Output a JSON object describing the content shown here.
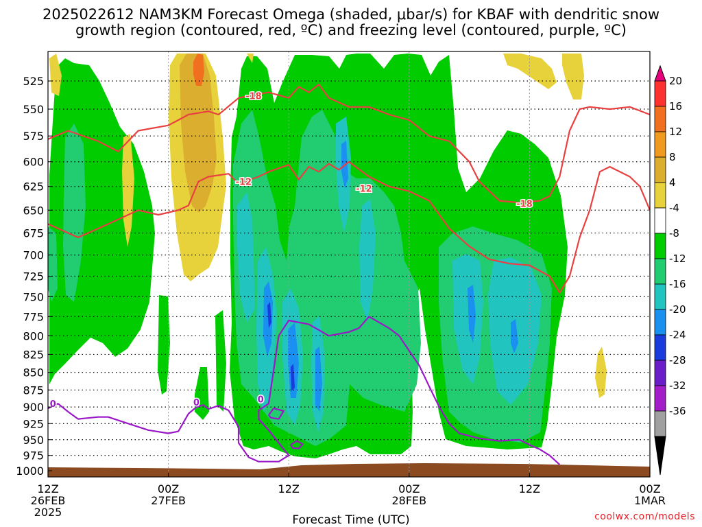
{
  "title": {
    "line1": "2025022612 NAM3KM Forecast Omega (shaded, μbar/s) for KBAF with dendritic snow",
    "line2": "growth region (contoured, red, ºC) and freezing level (contoured, purple, ºC)"
  },
  "credit": "coolwx.com/models",
  "chart_data": {
    "type": "heatmap",
    "title": "2025022612 NAM3KM Forecast Omega (shaded, μbar/s) for KBAF with dendritic snow growth region (contoured, red, ºC) and freezing level (contoured, purple, ºC)",
    "xlabel": "Forecast Time (UTC)",
    "ylabel": "",
    "x_range_hours": [
      0,
      60
    ],
    "x_ticks": [
      {
        "hour": 0,
        "label": [
          "12Z",
          "26FEB",
          "2025"
        ]
      },
      {
        "hour": 12,
        "label": [
          "00Z",
          "27FEB"
        ]
      },
      {
        "hour": 24,
        "label": [
          "12Z"
        ]
      },
      {
        "hour": 36,
        "label": [
          "00Z",
          "28FEB"
        ]
      },
      {
        "hour": 48,
        "label": [
          "12Z"
        ]
      },
      {
        "hour": 60,
        "label": [
          "00Z",
          "1MAR"
        ]
      }
    ],
    "y_axis": "pressure (mb), inverted",
    "y_range": [
      1000,
      500
    ],
    "y_ticks": [
      525,
      550,
      575,
      600,
      625,
      650,
      675,
      700,
      725,
      750,
      775,
      800,
      825,
      850,
      875,
      900,
      925,
      950,
      975,
      1000
    ],
    "grid": true,
    "colorbar": {
      "position": "right",
      "labels": [
        "20",
        "16",
        "12",
        "8",
        "4",
        "-4",
        "-8",
        "-12",
        "-16",
        "-20",
        "-24",
        "-28",
        "-32",
        "-36"
      ],
      "bins": [
        {
          "range": [
            16,
            20
          ],
          "color": "#ff3030"
        },
        {
          "range": [
            12,
            16
          ],
          "color": "#f07020"
        },
        {
          "range": [
            8,
            12
          ],
          "color": "#f09a20"
        },
        {
          "range": [
            4,
            8
          ],
          "color": "#dcae30"
        },
        {
          "range": [
            0,
            4
          ],
          "color": "#e8d23c"
        },
        {
          "range": [
            -4,
            4
          ],
          "color": "#ffffff"
        },
        {
          "range": [
            -8,
            -4
          ],
          "color": "#00cc00"
        },
        {
          "range": [
            -12,
            -8
          ],
          "color": "#22cc70"
        },
        {
          "range": [
            -16,
            -12
          ],
          "color": "#22c4c0"
        },
        {
          "range": [
            -20,
            -16
          ],
          "color": "#1a90f0"
        },
        {
          "range": [
            -24,
            -20
          ],
          "color": "#1a3cdc"
        },
        {
          "range": [
            -28,
            -24
          ],
          "color": "#6a1ec8"
        },
        {
          "range": [
            -32,
            -28
          ],
          "color": "#a21ec8"
        },
        {
          "range": [
            -36,
            -32
          ],
          "color": "#a0a0a0"
        }
      ],
      "top_arrow_color": "#e6007e",
      "bottom_arrow_color": "#000000"
    },
    "contours": [
      {
        "label": "-18",
        "color": "#e84040",
        "label_pos": {
          "hour": 20.5,
          "p": 538
        },
        "points": [
          [
            0,
            578
          ],
          [
            2,
            570
          ],
          [
            5,
            580
          ],
          [
            7,
            590
          ],
          [
            9,
            570
          ],
          [
            12,
            565
          ],
          [
            14,
            555
          ],
          [
            16,
            552
          ],
          [
            17,
            555
          ],
          [
            19,
            540
          ],
          [
            20,
            538
          ],
          [
            22,
            535
          ],
          [
            24,
            540
          ],
          [
            25,
            530
          ],
          [
            26,
            535
          ],
          [
            27,
            528
          ],
          [
            28,
            540
          ],
          [
            30,
            548
          ],
          [
            32,
            548
          ],
          [
            34,
            555
          ],
          [
            36,
            560
          ],
          [
            38,
            575
          ],
          [
            40,
            580
          ],
          [
            42,
            600
          ],
          [
            43,
            620
          ],
          [
            45,
            640
          ],
          [
            47,
            642
          ],
          [
            49,
            640
          ],
          [
            50,
            635
          ],
          [
            51,
            615
          ],
          [
            52,
            570
          ],
          [
            53,
            550
          ],
          [
            54,
            548
          ],
          [
            56,
            550
          ],
          [
            58,
            548
          ],
          [
            60,
            555
          ]
        ]
      },
      {
        "label": "-12",
        "color": "#e84040",
        "label_pos": {
          "hour": 19.5,
          "p": 620
        },
        "points": [
          [
            0,
            665
          ],
          [
            3,
            680
          ],
          [
            5,
            670
          ],
          [
            7,
            660
          ],
          [
            9,
            650
          ],
          [
            11,
            655
          ],
          [
            13,
            650
          ],
          [
            14,
            645
          ],
          [
            15,
            620
          ],
          [
            16,
            615
          ],
          [
            18,
            612
          ],
          [
            19,
            622
          ],
          [
            21,
            615
          ],
          [
            22,
            610
          ],
          [
            24,
            603
          ],
          [
            25,
            618
          ],
          [
            26,
            605
          ],
          [
            27,
            610
          ],
          [
            28,
            602
          ],
          [
            29,
            608
          ],
          [
            30,
            600
          ],
          [
            32,
            615
          ],
          [
            34,
            625
          ],
          [
            36,
            630
          ],
          [
            38,
            640
          ],
          [
            40,
            670
          ],
          [
            42,
            690
          ],
          [
            44,
            705
          ],
          [
            46,
            710
          ],
          [
            48,
            712
          ],
          [
            50,
            725
          ],
          [
            51,
            745
          ],
          [
            52,
            725
          ],
          [
            53,
            680
          ],
          [
            54,
            650
          ],
          [
            55,
            610
          ],
          [
            56,
            605
          ],
          [
            58,
            615
          ],
          [
            59,
            625
          ],
          [
            60,
            650
          ]
        ]
      },
      {
        "label": "0",
        "color": "#9a18c8",
        "label_pos": {
          "hour": 0.5,
          "p": 895
        },
        "points": [
          [
            0,
            902
          ],
          [
            1,
            895
          ],
          [
            2,
            907
          ],
          [
            3,
            918
          ],
          [
            5,
            915
          ],
          [
            6,
            915
          ],
          [
            8,
            925
          ],
          [
            10,
            935
          ],
          [
            12,
            940
          ],
          [
            13,
            937
          ],
          [
            14,
            910
          ],
          [
            14.8,
            900
          ],
          [
            15.5,
            897
          ],
          [
            16,
            903
          ],
          [
            17,
            898
          ],
          [
            18,
            905
          ],
          [
            19,
            930
          ],
          [
            19,
            955
          ],
          [
            20,
            978
          ],
          [
            21,
            985
          ],
          [
            23,
            985
          ],
          [
            24,
            975
          ],
          [
            23,
            955
          ],
          [
            22,
            935
          ],
          [
            21,
            918
          ],
          [
            21,
            905
          ],
          [
            22,
            895
          ],
          [
            23,
            800
          ],
          [
            24,
            780
          ],
          [
            26,
            785
          ],
          [
            28,
            800
          ],
          [
            30,
            795
          ],
          [
            31,
            790
          ],
          [
            32,
            775
          ],
          [
            34,
            790
          ],
          [
            35,
            800
          ],
          [
            36,
            820
          ],
          [
            37,
            840
          ],
          [
            38,
            870
          ],
          [
            39,
            900
          ],
          [
            40,
            925
          ],
          [
            41,
            940
          ],
          [
            43,
            948
          ],
          [
            45,
            952
          ],
          [
            47,
            950
          ],
          [
            48,
            958
          ],
          [
            49,
            965
          ],
          [
            50,
            975
          ],
          [
            51,
            990
          ]
        ]
      },
      {
        "label": "",
        "color": "#9a18c8",
        "points": [
          [
            22,
            912
          ],
          [
            22.5,
            902
          ],
          [
            23.5,
            906
          ],
          [
            23,
            918
          ],
          [
            22.2,
            916
          ],
          [
            22,
            912
          ]
        ]
      },
      {
        "label": "",
        "color": "#9a18c8",
        "points": [
          [
            24.2,
            958
          ],
          [
            24.8,
            952
          ],
          [
            25.4,
            957
          ],
          [
            25,
            964
          ],
          [
            24.4,
            963
          ],
          [
            24.2,
            958
          ]
        ]
      }
    ],
    "terrain_color": "#8b4a20"
  }
}
